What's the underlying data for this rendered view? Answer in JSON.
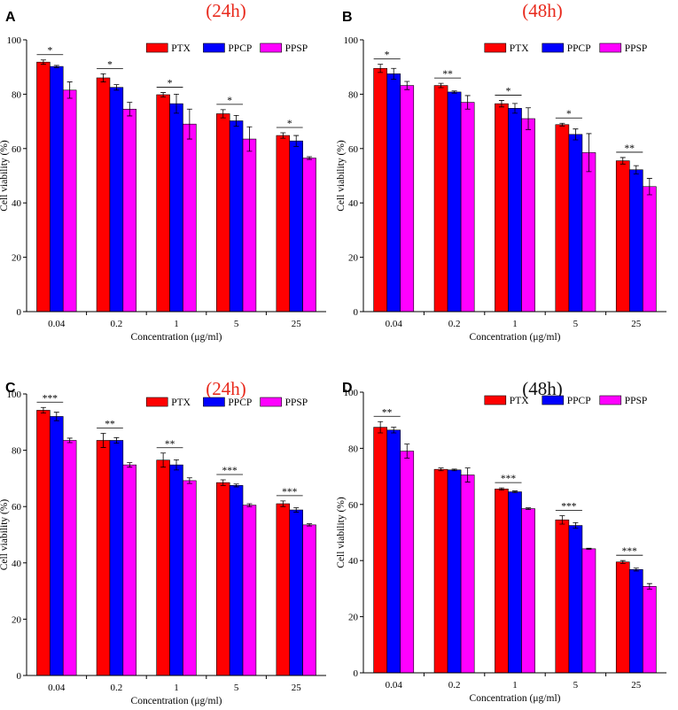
{
  "colors": {
    "PTX": "#ff0000",
    "PPCP": "#0000ff",
    "PPSP": "#ff00ff",
    "title_red": "#e8291c",
    "title_black": "#111111"
  },
  "chart_data": [
    {
      "type": "bar",
      "panel": "A",
      "title": "(24h)",
      "title_color": "red",
      "xlabel": "Concentration (μg/ml)",
      "ylabel": "Cell viability (%)",
      "ylim": [
        0,
        100
      ],
      "yticks": [
        0,
        20,
        40,
        60,
        80,
        100
      ],
      "categories": [
        "0.04",
        "0.2",
        "1",
        "5",
        "25"
      ],
      "legend": [
        "PTX",
        "PPCP",
        "PPSP"
      ],
      "series": [
        {
          "name": "PTX",
          "values": [
            91.8,
            86.0,
            79.8,
            72.8,
            64.8
          ],
          "errors": [
            0.8,
            1.5,
            0.8,
            1.5,
            1.0
          ]
        },
        {
          "name": "PPCP",
          "values": [
            90.2,
            82.5,
            76.5,
            70.2,
            62.8
          ],
          "errors": [
            0.4,
            1.0,
            3.5,
            2.0,
            2.0
          ]
        },
        {
          "name": "PPSP",
          "values": [
            81.5,
            74.5,
            69.0,
            63.5,
            56.5
          ],
          "errors": [
            3.0,
            2.5,
            5.5,
            4.5,
            0.5
          ]
        }
      ],
      "significance": [
        "*",
        "*",
        "*",
        "*",
        "*"
      ]
    },
    {
      "type": "bar",
      "panel": "B",
      "title": "(48h)",
      "title_color": "red",
      "xlabel": "Concentration (μg/ml)",
      "ylabel": "Cell viability (%)",
      "ylim": [
        0,
        100
      ],
      "yticks": [
        0,
        20,
        40,
        60,
        80,
        100
      ],
      "categories": [
        "0.04",
        "0.2",
        "1",
        "5",
        "25"
      ],
      "legend": [
        "PTX",
        "PPCP",
        "PPSP"
      ],
      "series": [
        {
          "name": "PTX",
          "values": [
            89.5,
            83.2,
            76.5,
            68.8,
            55.5
          ],
          "errors": [
            1.5,
            0.8,
            1.2,
            0.5,
            1.2
          ]
        },
        {
          "name": "PPCP",
          "values": [
            87.5,
            80.8,
            74.8,
            65.2,
            52.2
          ],
          "errors": [
            2.0,
            0.4,
            1.8,
            2.0,
            1.5
          ]
        },
        {
          "name": "PPSP",
          "values": [
            83.2,
            77.0,
            71.0,
            58.5,
            46.0
          ],
          "errors": [
            1.5,
            2.5,
            4.0,
            7.0,
            3.0
          ]
        }
      ],
      "significance": [
        "*",
        "**",
        "*",
        "*",
        "**"
      ]
    },
    {
      "type": "bar",
      "panel": "C",
      "title": "(24h)",
      "title_color": "red",
      "xlabel": "Concentration (μg/ml)",
      "ylabel": "Cell viability (%)",
      "ylim": [
        0,
        100
      ],
      "yticks": [
        0,
        20,
        40,
        60,
        80,
        100
      ],
      "categories": [
        "0.04",
        "0.2",
        "1",
        "5",
        "25"
      ],
      "legend": [
        "PTX",
        "PPCP",
        "PPSP"
      ],
      "series": [
        {
          "name": "PTX",
          "values": [
            94.2,
            83.5,
            76.5,
            68.5,
            61.0
          ],
          "errors": [
            1.0,
            2.5,
            2.5,
            1.0,
            1.0
          ]
        },
        {
          "name": "PPCP",
          "values": [
            92.0,
            83.5,
            74.8,
            67.5,
            58.8
          ],
          "errors": [
            1.5,
            1.0,
            1.8,
            0.5,
            0.8
          ]
        },
        {
          "name": "PPSP",
          "values": [
            83.5,
            74.8,
            69.2,
            60.5,
            53.5
          ],
          "errors": [
            0.8,
            0.8,
            1.0,
            0.5,
            0.4
          ]
        }
      ],
      "significance": [
        "***",
        "**",
        "**",
        "***",
        "***"
      ]
    },
    {
      "type": "bar",
      "panel": "D",
      "title": "(48h)",
      "title_color": "black",
      "xlabel": "Concentration (μg/ml)",
      "ylabel": "Cell viability (%)",
      "ylim": [
        0,
        100
      ],
      "yticks": [
        0,
        20,
        40,
        60,
        80,
        100
      ],
      "categories": [
        "0.04",
        "0.2",
        "1",
        "5",
        "25"
      ],
      "legend": [
        "PTX",
        "PPCP",
        "PPSP"
      ],
      "series": [
        {
          "name": "PTX",
          "values": [
            87.5,
            72.5,
            65.5,
            54.5,
            39.5
          ],
          "errors": [
            2.0,
            0.5,
            0.4,
            1.5,
            0.5
          ]
        },
        {
          "name": "PPCP",
          "values": [
            86.5,
            72.3,
            64.5,
            52.5,
            36.8
          ],
          "errors": [
            1.0,
            0.3,
            0.3,
            1.0,
            0.5
          ]
        },
        {
          "name": "PPSP",
          "values": [
            79.0,
            70.5,
            58.5,
            44.2,
            30.8
          ],
          "errors": [
            2.5,
            2.5,
            0.3,
            0.2,
            1.0
          ]
        }
      ],
      "significance": [
        "**",
        "",
        "***",
        "***",
        "***"
      ]
    }
  ]
}
